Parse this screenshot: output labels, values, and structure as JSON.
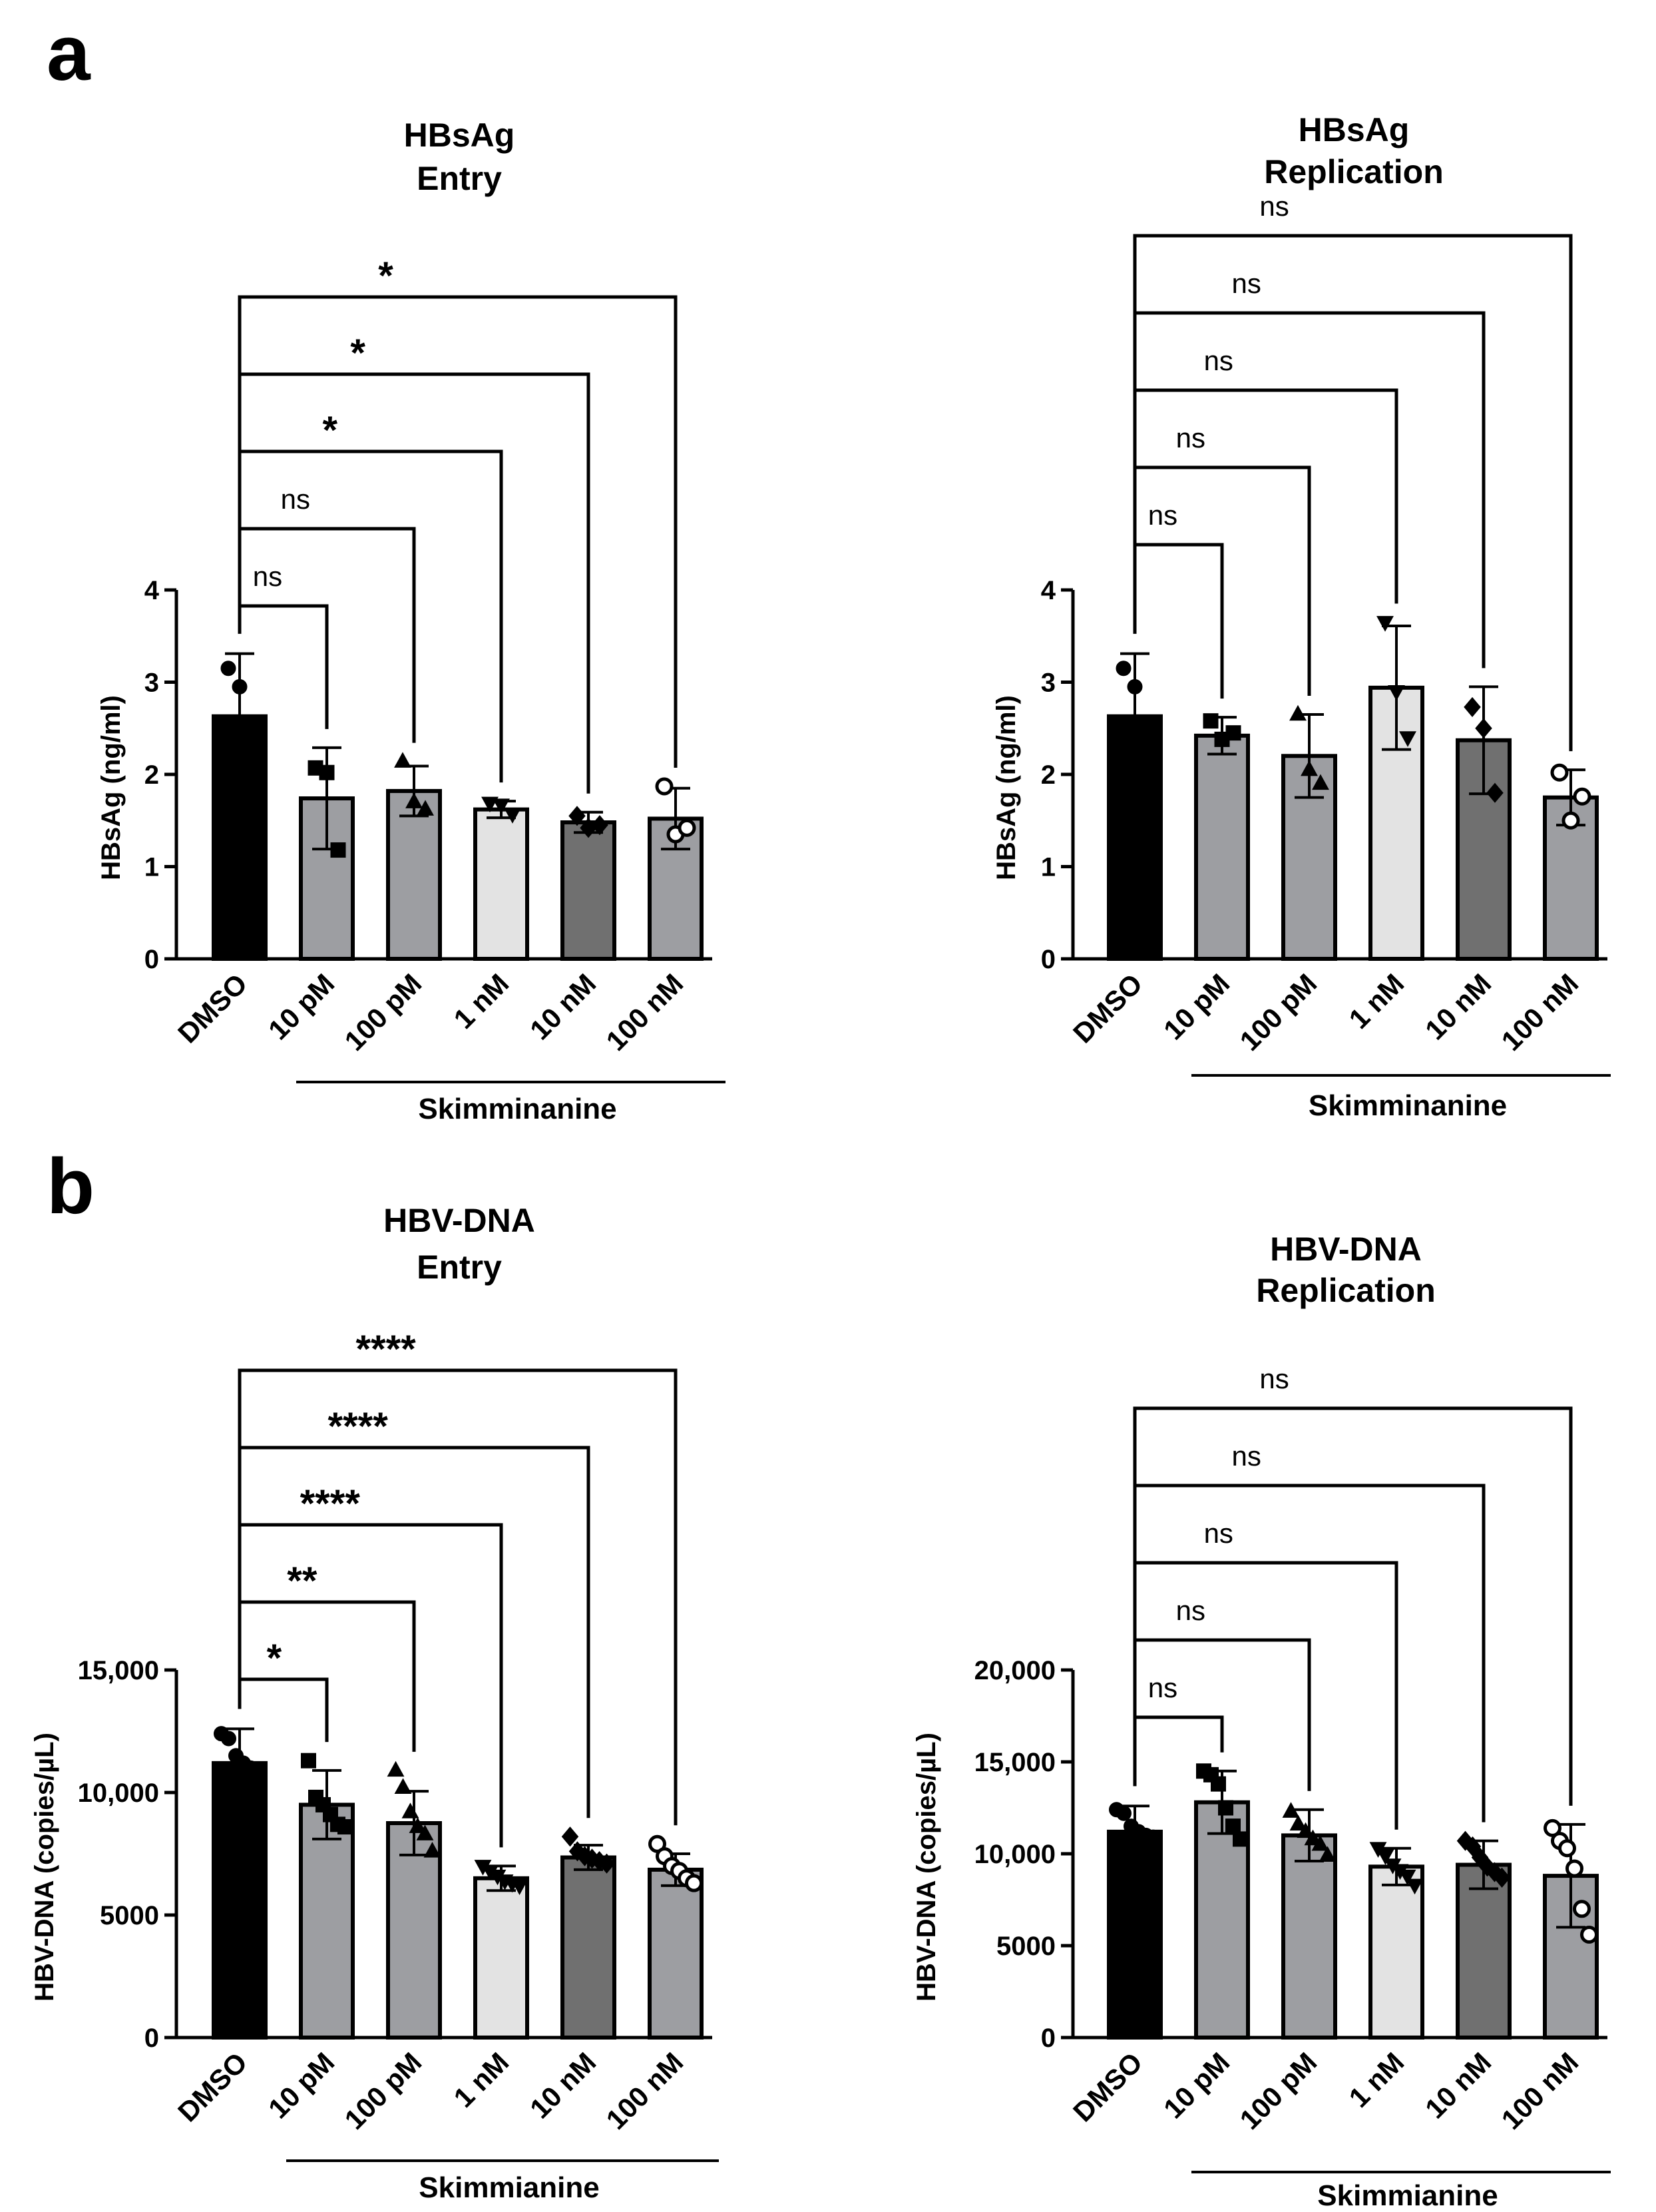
{
  "figure": {
    "panel_labels": [
      "a",
      "b"
    ]
  },
  "chart_data": [
    {
      "id": "a-entry",
      "type": "bar",
      "title": [
        "HBsAg",
        "Entry"
      ],
      "ylabel": "HBsAg  (ng/ml)",
      "xlabel": "",
      "group_label": "Skimminanine",
      "categories": [
        "DMSO",
        "10 pM",
        "100 pM",
        "1 nM",
        "10 nM",
        "100 nM"
      ],
      "colors": [
        "#000000",
        "#9d9ea2",
        "#9d9ea2",
        "#e3e3e3",
        "#707070",
        "#9d9ea2"
      ],
      "markers": [
        "circle",
        "square",
        "triangle-up",
        "triangle-down",
        "diamond",
        "circle-open"
      ],
      "ylim": [
        0,
        4
      ],
      "yticks": [
        0,
        1,
        2,
        3,
        4
      ],
      "ytick_labels": [
        "0",
        "1",
        "2",
        "3",
        "4"
      ],
      "values": [
        2.63,
        1.74,
        1.82,
        1.62,
        1.48,
        1.52
      ],
      "errors": [
        0.68,
        0.55,
        0.27,
        0.09,
        0.11,
        0.33
      ],
      "points": [
        [
          3.15,
          2.95,
          1.82
        ],
        [
          2.07,
          2.02,
          1.18
        ],
        [
          2.14,
          1.7,
          1.62
        ],
        [
          1.69,
          1.67,
          1.57
        ],
        [
          1.55,
          1.42,
          1.45
        ],
        [
          1.87,
          1.35,
          1.42
        ]
      ],
      "comparisons": [
        {
          "from": 0,
          "to": 1,
          "label": "ns"
        },
        {
          "from": 0,
          "to": 2,
          "label": "ns"
        },
        {
          "from": 0,
          "to": 3,
          "label": "*"
        },
        {
          "from": 0,
          "to": 4,
          "label": "*"
        },
        {
          "from": 0,
          "to": 5,
          "label": "*"
        }
      ]
    },
    {
      "id": "a-replication",
      "type": "bar",
      "title": [
        "HBsAg",
        "Replication"
      ],
      "ylabel": "HBsAg  (ng/ml)",
      "xlabel": "",
      "group_label": "Skimminanine",
      "categories": [
        "DMSO",
        "10 pM",
        "100 pM",
        "1 nM",
        "10 nM",
        "100 nM"
      ],
      "colors": [
        "#000000",
        "#9d9ea2",
        "#9d9ea2",
        "#e3e3e3",
        "#707070",
        "#9d9ea2"
      ],
      "markers": [
        "circle",
        "square",
        "triangle-up",
        "triangle-down",
        "diamond",
        "circle-open"
      ],
      "ylim": [
        0,
        4
      ],
      "yticks": [
        0,
        1,
        2,
        3,
        4
      ],
      "ytick_labels": [
        "0",
        "1",
        "2",
        "3",
        "4"
      ],
      "values": [
        2.63,
        2.42,
        2.2,
        2.94,
        2.37,
        1.75
      ],
      "errors": [
        0.68,
        0.2,
        0.45,
        0.67,
        0.58,
        0.3
      ],
      "points": [
        [
          3.15,
          2.95,
          1.82
        ],
        [
          2.58,
          2.38,
          2.45
        ],
        [
          2.65,
          2.05,
          1.9
        ],
        [
          3.65,
          2.9,
          2.4
        ],
        [
          2.73,
          2.5,
          1.8
        ],
        [
          2.02,
          1.5,
          1.76
        ]
      ],
      "comparisons": [
        {
          "from": 0,
          "to": 1,
          "label": "ns"
        },
        {
          "from": 0,
          "to": 2,
          "label": "ns"
        },
        {
          "from": 0,
          "to": 3,
          "label": "ns"
        },
        {
          "from": 0,
          "to": 4,
          "label": "ns"
        },
        {
          "from": 0,
          "to": 5,
          "label": "ns"
        }
      ]
    },
    {
      "id": "b-entry",
      "type": "bar",
      "title": [
        "HBV-DNA",
        "Entry"
      ],
      "ylabel": "HBV-DNA (copies/µL)",
      "xlabel": "",
      "group_label": "Skimmianine",
      "categories": [
        "DMSO",
        "10 pM",
        "100 pM",
        "1 nM",
        "10 nM",
        "100 nM"
      ],
      "colors": [
        "#000000",
        "#9d9ea2",
        "#9d9ea2",
        "#e3e3e3",
        "#707070",
        "#9d9ea2"
      ],
      "markers": [
        "circle",
        "square",
        "triangle-up",
        "triangle-down",
        "diamond",
        "circle-open"
      ],
      "ylim": [
        0,
        15000
      ],
      "yticks": [
        0,
        5000,
        10000,
        15000
      ],
      "ytick_labels": [
        "0",
        "5000",
        "10,000",
        "15,000"
      ],
      "values": [
        11200,
        9500,
        8750,
        6500,
        7350,
        6850
      ],
      "errors": [
        1400,
        1400,
        1300,
        500,
        500,
        650
      ],
      "points": [
        [
          12400,
          12200,
          11500,
          11200,
          11000,
          10900
        ],
        [
          11300,
          9800,
          9500,
          9100,
          8700,
          8600
        ],
        [
          10900,
          10200,
          9200,
          8600,
          8300,
          7600
        ],
        [
          7000,
          6800,
          6600,
          6400,
          6300,
          6200
        ],
        [
          8200,
          7600,
          7400,
          7300,
          7200,
          7100
        ],
        [
          7900,
          7400,
          7000,
          6800,
          6500,
          6300
        ]
      ],
      "comparisons": [
        {
          "from": 0,
          "to": 1,
          "label": "*"
        },
        {
          "from": 0,
          "to": 2,
          "label": "**"
        },
        {
          "from": 0,
          "to": 3,
          "label": "****"
        },
        {
          "from": 0,
          "to": 4,
          "label": "****"
        },
        {
          "from": 0,
          "to": 5,
          "label": "****"
        }
      ]
    },
    {
      "id": "b-replication",
      "type": "bar",
      "title": [
        "HBV-DNA",
        "Replication"
      ],
      "ylabel": "HBV-DNA (copies/µL)",
      "xlabel": "",
      "group_label": "Skimmianine",
      "categories": [
        "DMSO",
        "10 pM",
        "100 pM",
        "1 nM",
        "10 nM",
        "100 nM"
      ],
      "colors": [
        "#000000",
        "#9d9ea2",
        "#9d9ea2",
        "#e3e3e3",
        "#707070",
        "#9d9ea2"
      ],
      "markers": [
        "circle",
        "square",
        "triangle-up",
        "triangle-down",
        "diamond",
        "circle-open"
      ],
      "ylim": [
        0,
        20000
      ],
      "yticks": [
        0,
        5000,
        10000,
        15000,
        20000
      ],
      "ytick_labels": [
        "0",
        "5000",
        "10,000",
        "15,000",
        "20,000"
      ],
      "values": [
        11200,
        12800,
        11000,
        9300,
        9400,
        8800
      ],
      "errors": [
        1400,
        1700,
        1400,
        1000,
        1300,
        2800
      ],
      "points": [
        [
          12400,
          12200,
          11500,
          11200,
          11000,
          10900
        ],
        [
          14500,
          14300,
          13800,
          12500,
          11500,
          10800
        ],
        [
          12300,
          11600,
          11200,
          10800,
          10500,
          9900
        ],
        [
          10300,
          9900,
          9400,
          9100,
          8800,
          8300
        ],
        [
          10700,
          10400,
          9800,
          9300,
          9000,
          8700
        ],
        [
          11400,
          10700,
          10300,
          9200,
          7000,
          5600
        ]
      ],
      "comparisons": [
        {
          "from": 0,
          "to": 1,
          "label": "ns"
        },
        {
          "from": 0,
          "to": 2,
          "label": "ns"
        },
        {
          "from": 0,
          "to": 3,
          "label": "ns"
        },
        {
          "from": 0,
          "to": 4,
          "label": "ns"
        },
        {
          "from": 0,
          "to": 5,
          "label": "ns"
        }
      ]
    }
  ]
}
